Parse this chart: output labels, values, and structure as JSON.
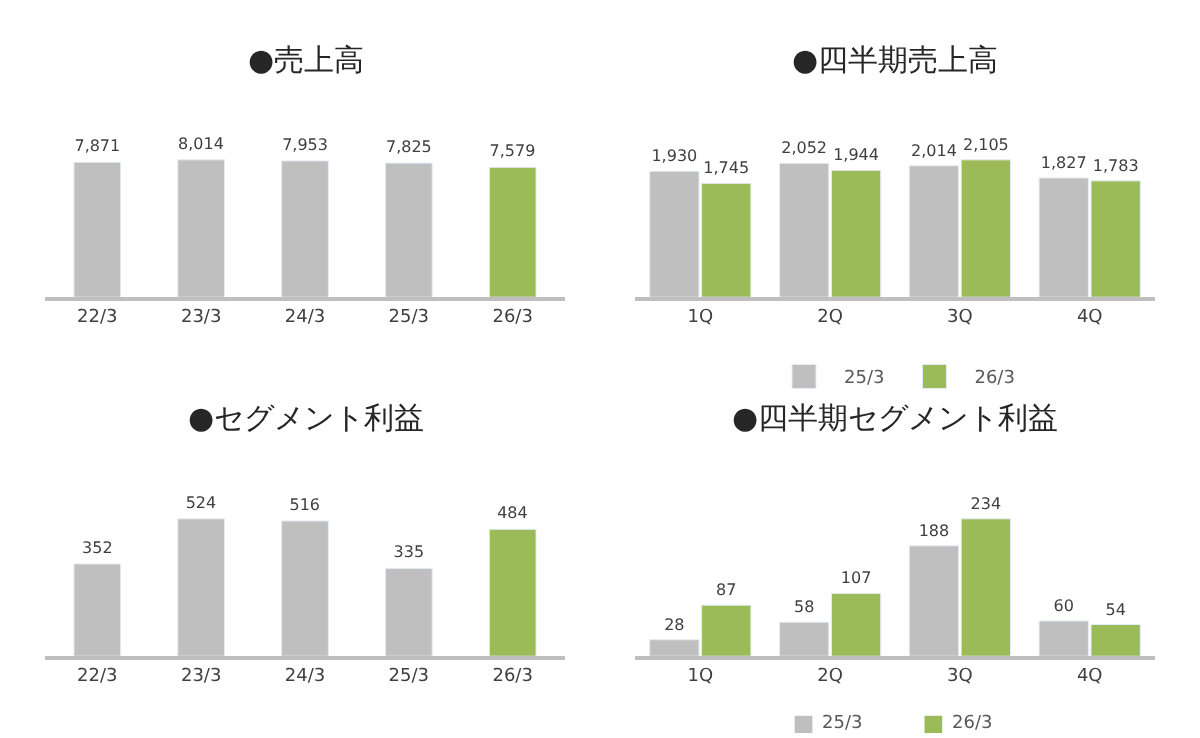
{
  "chart_data": [
    {
      "type": "bar",
      "title": "●売上高",
      "categories": [
        "22/3",
        "23/3",
        "24/3",
        "25/3",
        "26/3"
      ],
      "values": [
        7871,
        8014,
        7953,
        7825,
        7579
      ],
      "value_labels": [
        "7,871",
        "8,014",
        "7,953",
        "7,825",
        "7,579"
      ],
      "colors": [
        "#bfbfbf",
        "#bfbfbf",
        "#bfbfbf",
        "#bfbfbf",
        "#9bbb59"
      ],
      "tick_labels": "x"
    },
    {
      "type": "bar",
      "title": "●四半期売上高",
      "categories": [
        "1Q",
        "2Q",
        "3Q",
        "4Q"
      ],
      "series": [
        {
          "name": "25/3",
          "color": "#bfbfbf",
          "values": [
            1930,
            2052,
            2014,
            1827
          ],
          "value_labels": [
            "1,930",
            "2,052",
            "2,014",
            "1,827"
          ]
        },
        {
          "name": "26/3",
          "color": "#9bbb59",
          "values": [
            1745,
            1944,
            2105,
            1783
          ],
          "value_labels": [
            "1,745",
            "1,944",
            "2,105",
            "1,783"
          ]
        }
      ],
      "tick_labels": "x",
      "legend": "bottom"
    },
    {
      "type": "bar",
      "title": "●セグメント利益",
      "categories": [
        "22/3",
        "23/3",
        "24/3",
        "25/3",
        "26/3"
      ],
      "values": [
        352,
        524,
        516,
        335,
        484
      ],
      "colors": [
        "#bfbfbf",
        "#bfbfbf",
        "#bfbfbf",
        "#bfbfbf",
        "#9bbb59"
      ],
      "tick_labels": "x",
      "data_labels": true
    },
    {
      "type": "bar",
      "title": "●四半期セグメント利益",
      "categories": [
        "1Q",
        "2Q",
        "3Q",
        "4Q"
      ],
      "series": [
        {
          "name": "25/3",
          "color": "#bfbfbf",
          "values": [
            28,
            58,
            188,
            60
          ]
        },
        {
          "name": "26/3",
          "color": "#9bbb59",
          "values": [
            87,
            107,
            234,
            54
          ]
        }
      ],
      "tick_labels": "x",
      "data_labels": true,
      "legend": "bottom"
    }
  ]
}
